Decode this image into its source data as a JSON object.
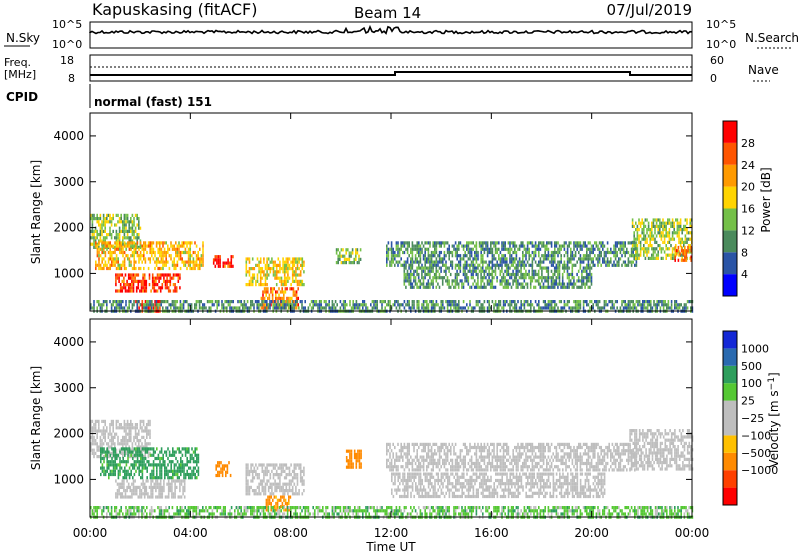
{
  "header": {
    "station": "Kapuskasing (fitACF)",
    "beam": "Beam 14",
    "date": "07/Jul/2019"
  },
  "noise_panel": {
    "left_label": "N.Sky",
    "right_label": "N.Search",
    "tick_top": "10^5",
    "tick_bottom": "10^0",
    "right_tick_top": "10^5",
    "right_tick_bottom": "10^0"
  },
  "freq_panel": {
    "left_label_top": "Freq.",
    "left_label_unit": "[MHz]",
    "left_tick_top": "18",
    "left_tick_bottom": "8",
    "right_label": "Nave",
    "right_tick_top": "60",
    "right_tick_bottom": "0"
  },
  "cpid_panel": {
    "label": "CPID",
    "value": "normal (fast) 151"
  },
  "colors": {
    "power": [
      "#0000ff",
      "#2a54a6",
      "#4a8a5c",
      "#74c048",
      "#ffd400",
      "#ff9a00",
      "#ff5500",
      "#ff0000"
    ],
    "velocity": [
      "#ff0000",
      "#ff4000",
      "#ff8a00",
      "#ffc000",
      "#bebebe",
      "#bebebe",
      "#55c833",
      "#2e9e5c",
      "#2a6ab0",
      "#1428d6"
    ]
  },
  "chart_data": [
    {
      "type": "heatmap",
      "name": "power",
      "xlabel": "",
      "ylabel": "Slant Range [km]",
      "x_ticks": [
        "00:00",
        "04:00",
        "08:00",
        "12:00",
        "16:00",
        "20:00",
        "00:00"
      ],
      "xlim_hours": [
        0,
        24
      ],
      "y_ticks": [
        1000,
        2000,
        3000,
        4000
      ],
      "ylim_km": [
        180,
        4500
      ],
      "colorbar": {
        "label": "Power [dB]",
        "ticks": [
          "4",
          "8",
          "12",
          "16",
          "20",
          "24",
          "28"
        ],
        "range": [
          0,
          32
        ]
      },
      "regions": [
        {
          "t0": 0.0,
          "t1": 2.0,
          "r0": 1550,
          "r1": 2300,
          "v": 14
        },
        {
          "t0": 0.2,
          "t1": 4.5,
          "r0": 1100,
          "r1": 1700,
          "v": 20
        },
        {
          "t0": 1.0,
          "t1": 3.6,
          "r0": 650,
          "r1": 1000,
          "v": 27
        },
        {
          "t0": 1.8,
          "t1": 2.8,
          "r0": 180,
          "r1": 420,
          "v": 28
        },
        {
          "t0": 4.9,
          "t1": 5.7,
          "r0": 1150,
          "r1": 1400,
          "v": 28
        },
        {
          "t0": 6.2,
          "t1": 8.5,
          "r0": 750,
          "r1": 1350,
          "v": 18
        },
        {
          "t0": 6.8,
          "t1": 8.3,
          "r0": 250,
          "r1": 700,
          "v": 24
        },
        {
          "t0": 9.8,
          "t1": 10.8,
          "r0": 1250,
          "r1": 1550,
          "v": 14
        },
        {
          "t0": 11.8,
          "t1": 21.8,
          "r0": 1200,
          "r1": 1700,
          "v": 10
        },
        {
          "t0": 12.5,
          "t1": 20.0,
          "r0": 700,
          "r1": 1150,
          "v": 11
        },
        {
          "t0": 21.6,
          "t1": 24.0,
          "r0": 1300,
          "r1": 2200,
          "v": 15
        },
        {
          "t0": 23.3,
          "t1": 24.0,
          "r0": 1300,
          "r1": 1600,
          "v": 24
        },
        {
          "t0": 0.0,
          "t1": 24.0,
          "r0": 180,
          "r1": 420,
          "v": 10
        }
      ]
    },
    {
      "type": "heatmap",
      "name": "velocity",
      "xlabel": "Time UT",
      "ylabel": "Slant Range [km]",
      "x_ticks": [
        "00:00",
        "04:00",
        "08:00",
        "12:00",
        "16:00",
        "20:00",
        "00:00"
      ],
      "xlim_hours": [
        0,
        24
      ],
      "y_ticks": [
        1000,
        2000,
        3000,
        4000
      ],
      "ylim_km": [
        180,
        4500
      ],
      "colorbar": {
        "label": "Velocity [m s^-1]",
        "ticks": [
          "1000",
          "500",
          "100",
          "25",
          "−25",
          "−100",
          "−500",
          "−1000"
        ]
      },
      "regions": [
        {
          "t0": 0.0,
          "t1": 2.4,
          "r0": 1500,
          "r1": 2300,
          "v": 0
        },
        {
          "t0": 0.4,
          "t1": 4.3,
          "r0": 1050,
          "r1": 1700,
          "v": 150
        },
        {
          "t0": 1.0,
          "t1": 3.8,
          "r0": 600,
          "r1": 1000,
          "v": 0
        },
        {
          "t0": 5.0,
          "t1": 5.6,
          "r0": 1100,
          "r1": 1400,
          "v": -300
        },
        {
          "t0": 6.2,
          "t1": 8.5,
          "r0": 700,
          "r1": 1350,
          "v": 0
        },
        {
          "t0": 7.0,
          "t1": 8.0,
          "r0": 350,
          "r1": 650,
          "v": -150
        },
        {
          "t0": 10.2,
          "t1": 10.8,
          "r0": 1300,
          "r1": 1650,
          "v": -400
        },
        {
          "t0": 11.8,
          "t1": 21.8,
          "r0": 1200,
          "r1": 1800,
          "v": 0
        },
        {
          "t0": 12.0,
          "t1": 20.5,
          "r0": 650,
          "r1": 1150,
          "v": 0
        },
        {
          "t0": 21.5,
          "t1": 24.0,
          "r0": 1200,
          "r1": 2100,
          "v": 0
        },
        {
          "t0": 0.0,
          "t1": 24.0,
          "r0": 180,
          "r1": 420,
          "v": 60
        }
      ]
    }
  ]
}
